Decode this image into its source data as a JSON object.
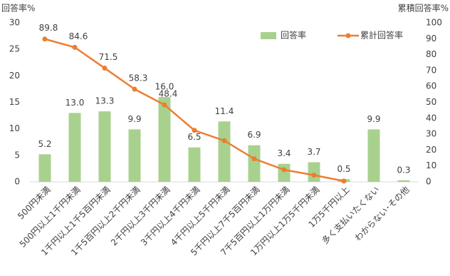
{
  "chart_data": {
    "type": "combo",
    "ylabel": "回答率%",
    "y2label": "累積回答率%",
    "categories": [
      "500円未満",
      "500円以上1千円未満",
      "1千円以上1千5百円未満",
      "1千5百円以上2千円未満",
      "2千円以上3千円未満",
      "3千円以上4千円未満",
      "4千円以上5千円未満",
      "5千円以上7千5百円未満",
      "7千5百円以上1万円未満",
      "1万円以上1万5千円未満",
      "1万5千円以上",
      "多く支払いたくない",
      "わからない･その他"
    ],
    "series": [
      {
        "name": "回答率",
        "type": "bar",
        "color": "#a9d18e",
        "axis": "y",
        "values": [
          5.2,
          13.0,
          13.3,
          9.9,
          16.0,
          6.5,
          11.4,
          6.9,
          3.4,
          3.7,
          0.5,
          9.9,
          0.3
        ],
        "value_labels": [
          "5.2",
          "13.0",
          "13.3",
          "9.9",
          "16.0",
          "6.5",
          "11.4",
          "6.9",
          "3.4",
          "3.7",
          "0.5",
          "9.9",
          "0.3"
        ]
      },
      {
        "name": "累計回答率",
        "type": "line",
        "color": "#ed7d31",
        "axis": "y2",
        "values": [
          89.8,
          84.6,
          71.5,
          58.3,
          48.4,
          32.4,
          25.9,
          14.5,
          7.6,
          4.2,
          0.5,
          null,
          null
        ],
        "value_labels": [
          "89.8",
          "84.6",
          "71.5",
          "58.3",
          "48.4",
          null,
          null,
          null,
          null,
          null,
          null,
          null,
          null
        ]
      }
    ],
    "ylim": [
      0,
      30
    ],
    "yticks": [
      0,
      5,
      10,
      15,
      20,
      25,
      30
    ],
    "y2lim": [
      0,
      100
    ],
    "y2ticks": [
      0,
      10,
      20,
      30,
      40,
      50,
      60,
      70,
      80,
      90,
      100
    ],
    "grid": false,
    "legend": "top-right"
  }
}
